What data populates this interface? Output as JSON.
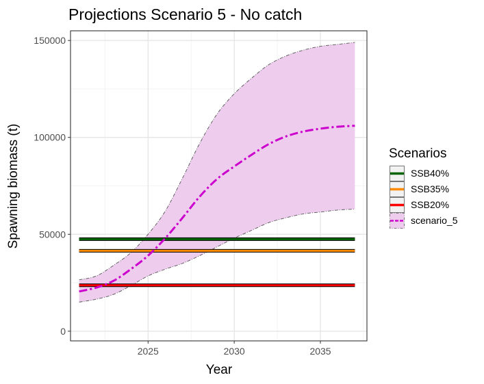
{
  "chart_data": {
    "type": "line",
    "title": "Projections Scenario 5 - No catch",
    "xlabel": "Year",
    "ylabel": "Spawning biomass (t)",
    "xlim": [
      2020.5,
      2037.7
    ],
    "ylim": [
      -5000,
      155000
    ],
    "xticks": [
      2025,
      2030,
      2035
    ],
    "yticks": [
      0,
      50000,
      100000,
      150000
    ],
    "xtick_labels": [
      "2025",
      "2030",
      "2035"
    ],
    "ytick_labels": [
      "0",
      "50000",
      "100000",
      "150000"
    ],
    "grid": true,
    "legend": {
      "title": "Scenarios",
      "position": "right"
    },
    "reference_lines": [
      {
        "name": "SSB40%",
        "y": 47500,
        "color": "#006400"
      },
      {
        "name": "SSB35%",
        "y": 41500,
        "color": "#FF8C00"
      },
      {
        "name": "SSB20%",
        "y": 23700,
        "color": "#FF0000"
      }
    ],
    "series": [
      {
        "name": "scenario_5",
        "color": "#CC00CC",
        "band_color": "#EECCEE",
        "x": [
          2021,
          2022,
          2023,
          2024,
          2025,
          2026,
          2027,
          2028,
          2029,
          2030,
          2031,
          2032,
          2033,
          2034,
          2035,
          2036,
          2037
        ],
        "values": [
          20500,
          22500,
          26000,
          32000,
          39000,
          48000,
          58500,
          69500,
          78500,
          85000,
          91000,
          96500,
          100500,
          103000,
          104500,
          105500,
          106000
        ],
        "lower": [
          15000,
          16500,
          19000,
          23500,
          28500,
          32000,
          35000,
          39000,
          43500,
          48000,
          52000,
          56000,
          58500,
          60500,
          61500,
          62500,
          63000
        ],
        "upper": [
          26500,
          28500,
          34000,
          40500,
          50000,
          62000,
          79000,
          97000,
          112000,
          122500,
          130500,
          137500,
          142000,
          145000,
          147000,
          148000,
          149000
        ]
      }
    ]
  }
}
